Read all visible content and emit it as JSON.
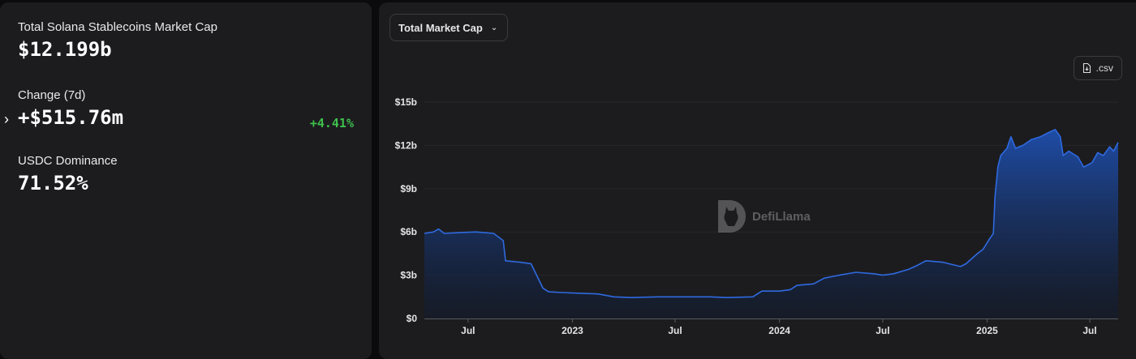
{
  "stats": {
    "total_label": "Total Solana Stablecoins Market Cap",
    "total_value": "$12.199b",
    "change_label": "Change (7d)",
    "change_value": "+$515.76m",
    "change_pct": "+4.41%",
    "dominance_label": "USDC Dominance",
    "dominance_value": "71.52%"
  },
  "controls": {
    "metric_select": "Total Market Cap",
    "csv_label": ".csv"
  },
  "watermark": "DefiLlama",
  "colors": {
    "positive": "#3fbf4c",
    "line": "#2f6ae0",
    "fill_top": "#1e4aa3"
  },
  "chart_data": {
    "type": "area",
    "y_ticks": [
      "$0",
      "$3b",
      "$6b",
      "$9b",
      "$12b",
      "$15b"
    ],
    "y_tick_values": [
      0,
      3,
      6,
      9,
      12,
      15
    ],
    "ylim": [
      0,
      15
    ],
    "x_ticks": [
      {
        "label": "Jul",
        "date": "2022-07-01"
      },
      {
        "label": "2023",
        "date": "2023-01-01"
      },
      {
        "label": "Jul",
        "date": "2023-07-01"
      },
      {
        "label": "2024",
        "date": "2024-01-01"
      },
      {
        "label": "Jul",
        "date": "2024-07-01"
      },
      {
        "label": "2025",
        "date": "2025-01-01"
      },
      {
        "label": "Jul",
        "date": "2025-07-01"
      }
    ],
    "x_range": [
      "2022-04-15",
      "2025-08-20"
    ],
    "series": [
      {
        "points": [
          [
            "2022-04-15",
            5.9
          ],
          [
            "2022-05-01",
            6.0
          ],
          [
            "2022-05-10",
            6.2
          ],
          [
            "2022-05-20",
            5.9
          ],
          [
            "2022-06-15",
            5.95
          ],
          [
            "2022-07-15",
            6.0
          ],
          [
            "2022-08-15",
            5.9
          ],
          [
            "2022-09-01",
            5.4
          ],
          [
            "2022-09-05",
            4.0
          ],
          [
            "2022-10-01",
            3.9
          ],
          [
            "2022-10-20",
            3.8
          ],
          [
            "2022-11-10",
            2.1
          ],
          [
            "2022-11-20",
            1.85
          ],
          [
            "2022-12-15",
            1.8
          ],
          [
            "2023-01-15",
            1.75
          ],
          [
            "2023-02-15",
            1.7
          ],
          [
            "2023-03-15",
            1.5
          ],
          [
            "2023-04-15",
            1.45
          ],
          [
            "2023-06-01",
            1.5
          ],
          [
            "2023-07-15",
            1.5
          ],
          [
            "2023-09-01",
            1.5
          ],
          [
            "2023-10-01",
            1.45
          ],
          [
            "2023-11-15",
            1.5
          ],
          [
            "2023-12-01",
            1.9
          ],
          [
            "2024-01-01",
            1.9
          ],
          [
            "2024-01-20",
            2.0
          ],
          [
            "2024-02-01",
            2.3
          ],
          [
            "2024-03-01",
            2.4
          ],
          [
            "2024-03-20",
            2.8
          ],
          [
            "2024-04-15",
            3.0
          ],
          [
            "2024-05-15",
            3.2
          ],
          [
            "2024-06-15",
            3.1
          ],
          [
            "2024-07-01",
            3.0
          ],
          [
            "2024-07-20",
            3.1
          ],
          [
            "2024-08-15",
            3.4
          ],
          [
            "2024-09-01",
            3.7
          ],
          [
            "2024-09-15",
            4.0
          ],
          [
            "2024-10-15",
            3.9
          ],
          [
            "2024-11-15",
            3.6
          ],
          [
            "2024-11-25",
            3.8
          ],
          [
            "2024-12-15",
            4.5
          ],
          [
            "2024-12-25",
            4.8
          ],
          [
            "2025-01-05",
            5.5
          ],
          [
            "2025-01-12",
            5.9
          ],
          [
            "2025-01-15",
            8.5
          ],
          [
            "2025-01-20",
            10.5
          ],
          [
            "2025-01-25",
            11.3
          ],
          [
            "2025-02-05",
            11.8
          ],
          [
            "2025-02-12",
            12.6
          ],
          [
            "2025-02-20",
            11.8
          ],
          [
            "2025-03-05",
            12.0
          ],
          [
            "2025-03-20",
            12.4
          ],
          [
            "2025-04-05",
            12.6
          ],
          [
            "2025-04-20",
            12.9
          ],
          [
            "2025-05-01",
            13.1
          ],
          [
            "2025-05-10",
            12.6
          ],
          [
            "2025-05-15",
            11.3
          ],
          [
            "2025-05-25",
            11.6
          ],
          [
            "2025-06-10",
            11.2
          ],
          [
            "2025-06-20",
            10.5
          ],
          [
            "2025-07-05",
            10.8
          ],
          [
            "2025-07-15",
            11.5
          ],
          [
            "2025-07-25",
            11.3
          ],
          [
            "2025-08-05",
            11.9
          ],
          [
            "2025-08-12",
            11.6
          ],
          [
            "2025-08-20",
            12.2
          ]
        ]
      }
    ]
  }
}
